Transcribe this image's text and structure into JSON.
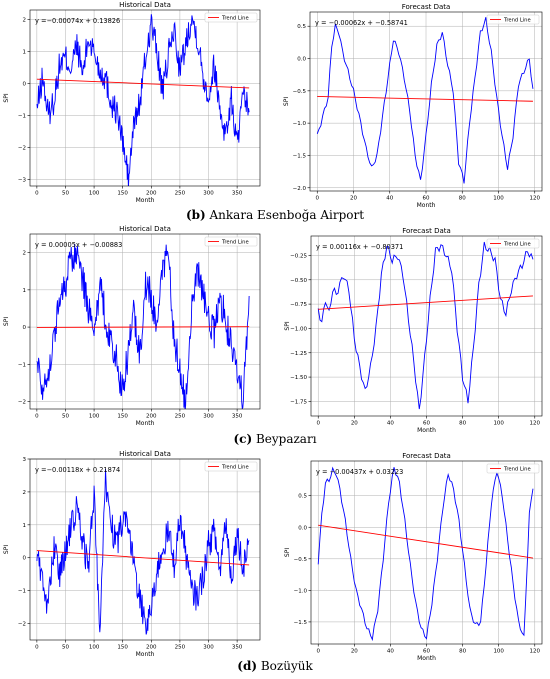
{
  "captions": [
    {
      "id": "b",
      "prefix": "(b)",
      "text": "Ankara Esenboğa Airport"
    },
    {
      "id": "c",
      "prefix": "(c)",
      "text": "Beypazarı"
    },
    {
      "id": "d",
      "prefix": "(d)",
      "text": "Bozüyük"
    }
  ],
  "colors": {
    "series": "#0000ff",
    "trend": "#ff0000",
    "grid": "#b0b0b0"
  },
  "chart_data": [
    {
      "type": "line",
      "panel": "b-historical",
      "title": "Historical Data",
      "xlabel": "Month",
      "ylabel": "SPI",
      "equation": "y =−0.00074x + 0.13826",
      "trend": {
        "slope": -0.00074,
        "intercept": 0.13826
      },
      "legend": "Trend Line",
      "legend_position": "top-right",
      "grid": true,
      "xlim": [
        -12,
        390
      ],
      "ylim": [
        -3.2,
        2.3
      ],
      "xticks": [
        0,
        50,
        100,
        150,
        200,
        250,
        300,
        350
      ],
      "yticks": [
        -3,
        -2,
        -1,
        0,
        1,
        2
      ],
      "n": 372,
      "x_keypoints": [
        0,
        10,
        20,
        30,
        40,
        50,
        60,
        70,
        80,
        90,
        100,
        110,
        120,
        130,
        140,
        150,
        160,
        170,
        180,
        190,
        200,
        210,
        220,
        230,
        240,
        250,
        260,
        270,
        280,
        290,
        300,
        310,
        320,
        330,
        340,
        350,
        360,
        371
      ],
      "y_keypoints": [
        -0.8,
        0.2,
        -1.0,
        -0.5,
        0.6,
        0.8,
        0.5,
        1.2,
        0.3,
        1.4,
        1.0,
        0.4,
        0.2,
        -0.6,
        -0.9,
        -1.8,
        -3.0,
        -1.2,
        -0.6,
        0.8,
        1.9,
        1.0,
        -0.3,
        0.9,
        1.7,
        0.4,
        1.2,
        2.1,
        1.5,
        0.3,
        -0.4,
        0.6,
        -0.8,
        -1.6,
        -0.5,
        -1.9,
        -0.5,
        -0.7
      ]
    },
    {
      "type": "line",
      "panel": "b-forecast",
      "title": "Forecast Data",
      "xlabel": "Month",
      "ylabel": "SPI",
      "equation": "y = −0.00062x + −0.58741",
      "trend": {
        "slope": -0.00062,
        "intercept": -0.58741
      },
      "legend": "Trend Line",
      "legend_position": "top-right",
      "grid": true,
      "xlim": [
        -4,
        124
      ],
      "ylim": [
        -2.05,
        0.72
      ],
      "xticks": [
        0,
        20,
        40,
        60,
        80,
        100,
        120
      ],
      "yticks": [
        -2.0,
        -1.5,
        -1.0,
        -0.5,
        0.0,
        0.5
      ],
      "n": 120,
      "x_keypoints": [
        0,
        3,
        6,
        8,
        10,
        12,
        14,
        17,
        20,
        24,
        27,
        30,
        33,
        36,
        39,
        42,
        45,
        48,
        51,
        54,
        57,
        60,
        63,
        66,
        69,
        72,
        75,
        78,
        81,
        84,
        87,
        90,
        93,
        96,
        99,
        102,
        105,
        108,
        111,
        114,
        117,
        119
      ],
      "y_keypoints": [
        -1.2,
        -0.9,
        -0.6,
        0.2,
        0.5,
        0.4,
        0.1,
        -0.2,
        -0.5,
        -1.0,
        -1.4,
        -1.7,
        -1.5,
        -0.9,
        -0.3,
        0.3,
        0.1,
        -0.3,
        -0.8,
        -1.5,
        -1.9,
        -1.2,
        -0.4,
        0.2,
        0.4,
        -0.1,
        -0.5,
        -1.6,
        -1.9,
        -1.0,
        -0.3,
        0.4,
        0.6,
        0.1,
        -0.6,
        -1.2,
        -1.7,
        -1.2,
        -0.4,
        -0.2,
        0.0,
        -0.5
      ]
    },
    {
      "type": "line",
      "panel": "c-historical",
      "title": "Historical Data",
      "xlabel": "Month",
      "ylabel": "SPI",
      "equation": "y = 0.00005x + −0.00883",
      "trend": {
        "slope": 5e-05,
        "intercept": -0.00883
      },
      "legend": "Trend Line",
      "legend_position": "top-right",
      "grid": true,
      "xlim": [
        -12,
        390
      ],
      "ylim": [
        -2.2,
        2.5
      ],
      "xticks": [
        0,
        50,
        100,
        150,
        200,
        250,
        300,
        350
      ],
      "yticks": [
        -2,
        -1,
        0,
        1,
        2
      ],
      "n": 372,
      "x_keypoints": [
        0,
        10,
        20,
        30,
        40,
        50,
        60,
        70,
        80,
        90,
        100,
        110,
        120,
        130,
        140,
        150,
        160,
        170,
        180,
        190,
        200,
        210,
        220,
        230,
        240,
        250,
        260,
        270,
        280,
        290,
        300,
        310,
        320,
        330,
        340,
        350,
        360,
        371
      ],
      "y_keypoints": [
        -0.8,
        -1.6,
        -1.2,
        -0.3,
        0.8,
        1.2,
        1.8,
        2.0,
        1.3,
        0.5,
        -0.4,
        1.1,
        0.3,
        -0.5,
        -0.9,
        -1.8,
        -0.6,
        0.4,
        -0.8,
        1.2,
        0.8,
        -0.2,
        1.6,
        2.1,
        -0.4,
        -1.1,
        -2.0,
        0.5,
        1.5,
        1.0,
        0.3,
        -0.2,
        0.8,
        0.2,
        -0.6,
        -1.3,
        -1.8,
        0.5
      ]
    },
    {
      "type": "line",
      "panel": "c-forecast",
      "title": "Forecast Data",
      "xlabel": "Month",
      "ylabel": "SPI",
      "equation": "y = 0.00116x + −0.80371",
      "trend": {
        "slope": 0.00116,
        "intercept": -0.80371
      },
      "legend": "Trend Line",
      "legend_position": "top-right",
      "grid": true,
      "xlim": [
        -4,
        124
      ],
      "ylim": [
        -1.9,
        -0.05
      ],
      "xticks": [
        0,
        20,
        40,
        60,
        80,
        100,
        120
      ],
      "yticks": [
        -1.75,
        -1.5,
        -1.25,
        -1.0,
        -0.75,
        -0.5,
        -0.25
      ],
      "n": 120,
      "x_keypoints": [
        0,
        2,
        4,
        6,
        8,
        10,
        12,
        14,
        17,
        20,
        23,
        26,
        29,
        32,
        35,
        38,
        41,
        44,
        47,
        50,
        53,
        56,
        59,
        62,
        65,
        68,
        71,
        74,
        77,
        80,
        83,
        86,
        89,
        92,
        95,
        98,
        101,
        104,
        107,
        110,
        113,
        116,
        119
      ],
      "y_keypoints": [
        -0.8,
        -0.95,
        -0.7,
        -0.85,
        -0.6,
        -0.65,
        -0.55,
        -0.45,
        -0.6,
        -1.1,
        -1.4,
        -1.65,
        -1.4,
        -1.0,
        -0.45,
        -0.15,
        -0.3,
        -0.25,
        -0.45,
        -0.9,
        -1.35,
        -1.85,
        -1.3,
        -0.7,
        -0.2,
        -0.15,
        -0.25,
        -0.4,
        -1.0,
        -1.5,
        -1.75,
        -1.2,
        -0.55,
        -0.15,
        -0.2,
        -0.3,
        -0.7,
        -0.85,
        -0.6,
        -0.45,
        -0.35,
        -0.2,
        -0.3
      ]
    },
    {
      "type": "line",
      "panel": "d-historical",
      "title": "Historical Data",
      "xlabel": "Month",
      "ylabel": "SPI",
      "equation": "y =−0.00118x + 0.21874",
      "trend": {
        "slope": -0.00118,
        "intercept": 0.21874
      },
      "legend": "Trend Line",
      "legend_position": "top-right",
      "grid": true,
      "xlim": [
        -12,
        390
      ],
      "ylim": [
        -2.5,
        3.0
      ],
      "xticks": [
        0,
        50,
        100,
        150,
        200,
        250,
        300,
        350
      ],
      "yticks": [
        -2,
        -1,
        0,
        1,
        2,
        3
      ],
      "n": 372,
      "x_keypoints": [
        0,
        10,
        20,
        30,
        40,
        50,
        60,
        70,
        80,
        90,
        100,
        110,
        120,
        130,
        140,
        150,
        160,
        170,
        180,
        190,
        200,
        210,
        220,
        230,
        240,
        250,
        260,
        270,
        280,
        290,
        300,
        310,
        320,
        330,
        340,
        350,
        360,
        371
      ],
      "y_keypoints": [
        0.3,
        -0.8,
        -1.5,
        0.4,
        -0.6,
        0.3,
        0.9,
        1.5,
        0.5,
        -0.3,
        2.0,
        -2.3,
        2.4,
        1.0,
        0.3,
        1.2,
        0.8,
        -0.2,
        -1.2,
        -2.0,
        -1.6,
        -0.4,
        0.3,
        0.8,
        -0.2,
        1.2,
        0.2,
        -1.0,
        -1.2,
        -0.6,
        0.4,
        0.8,
        -0.4,
        1.2,
        -0.6,
        0.8,
        -0.3,
        0.6
      ]
    },
    {
      "type": "line",
      "panel": "d-forecast",
      "title": "Forecast Data",
      "xlabel": "Month",
      "ylabel": "SPI",
      "equation": "y = −0.00437x + 0.03223",
      "trend": {
        "slope": -0.00437,
        "intercept": 0.03223
      },
      "legend": "Trend Line",
      "legend_position": "top-right",
      "grid": true,
      "xlim": [
        -4,
        124
      ],
      "ylim": [
        -1.85,
        1.05
      ],
      "xticks": [
        0,
        20,
        40,
        60,
        80,
        100,
        120
      ],
      "yticks": [
        -1.5,
        -1.0,
        -0.5,
        0.0,
        0.5
      ],
      "n": 120,
      "x_keypoints": [
        0,
        2,
        4,
        6,
        8,
        10,
        12,
        15,
        18,
        21,
        24,
        27,
        30,
        33,
        36,
        39,
        42,
        45,
        48,
        51,
        54,
        57,
        60,
        63,
        66,
        69,
        72,
        75,
        78,
        81,
        84,
        87,
        90,
        93,
        96,
        99,
        102,
        105,
        108,
        111,
        114,
        117,
        119
      ],
      "y_keypoints": [
        -0.55,
        0.2,
        0.7,
        0.75,
        0.9,
        0.85,
        0.6,
        0.1,
        -0.5,
        -1.0,
        -1.3,
        -1.6,
        -1.75,
        -1.3,
        -0.5,
        0.4,
        0.95,
        0.7,
        0.1,
        -0.6,
        -1.2,
        -1.6,
        -1.75,
        -1.2,
        -0.5,
        0.3,
        0.85,
        0.6,
        0.1,
        -0.6,
        -1.3,
        -1.55,
        -1.5,
        -0.6,
        0.4,
        0.9,
        0.5,
        -0.2,
        -0.9,
        -1.5,
        -1.75,
        0.2,
        0.65
      ]
    }
  ]
}
